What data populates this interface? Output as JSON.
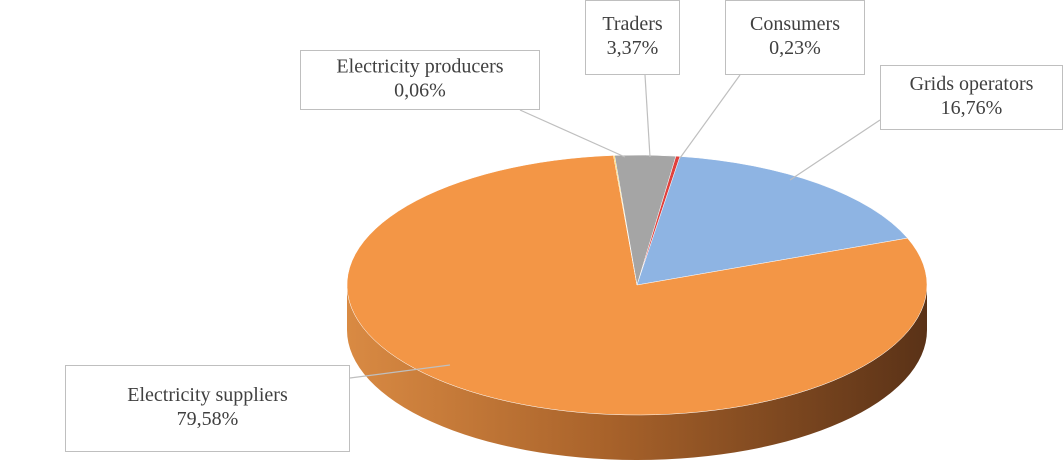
{
  "chart_data": {
    "type": "pie",
    "categories": [
      "Consumers",
      "Grids operators",
      "Electricity suppliers",
      "Electricity producers",
      "Traders"
    ],
    "values": [
      0.23,
      16.76,
      79.58,
      0.06,
      3.37
    ],
    "value_labels": [
      "0,23%",
      "16,76%",
      "79,58%",
      "0,06%",
      "3,37%"
    ],
    "colors": [
      "#e0403c",
      "#8eb4e3",
      "#f39646",
      "#ffc000",
      "#a5a5a5"
    ]
  }
}
